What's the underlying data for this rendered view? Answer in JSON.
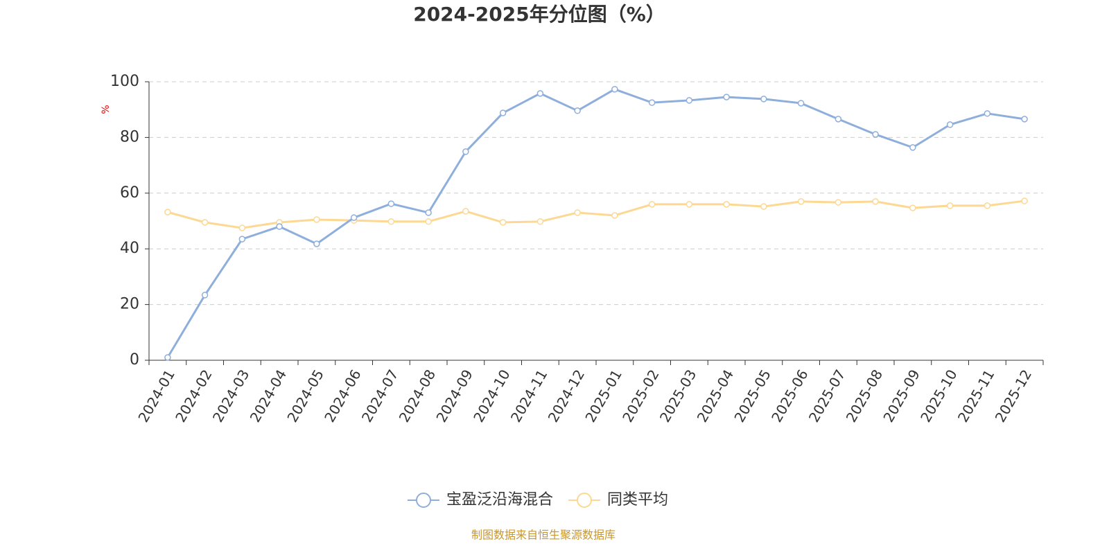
{
  "chart_data": {
    "type": "line",
    "title": "2024-2025年分位图（%）",
    "y_label": "%",
    "categories": [
      "2024-01",
      "2024-02",
      "2024-03",
      "2024-04",
      "2024-05",
      "2024-06",
      "2024-07",
      "2024-08",
      "2024-09",
      "2024-10",
      "2024-11",
      "2024-12",
      "2025-01",
      "2025-02",
      "2025-03",
      "2025-04",
      "2025-05",
      "2025-06",
      "2025-07",
      "2025-08",
      "2025-09",
      "2025-10",
      "2025-11",
      "2025-12"
    ],
    "series": [
      {
        "name": "宝盈泛沿海混合",
        "color": "#8eaedb",
        "values": [
          1,
          23.4,
          43.5,
          48,
          41.8,
          51.2,
          56.2,
          53,
          74.9,
          88.8,
          95.8,
          89.6,
          97.3,
          92.5,
          93.3,
          94.5,
          93.8,
          92.3,
          86.6,
          81.1,
          76.4,
          84.6,
          88.6,
          86.6
        ]
      },
      {
        "name": "同类平均",
        "color": "#fcd892",
        "values": [
          53.2,
          49.5,
          47.5,
          49.5,
          50.5,
          50.2,
          49.8,
          49.8,
          53.5,
          49.5,
          49.8,
          53,
          52,
          56,
          56,
          56,
          55.2,
          57,
          56.7,
          57,
          54.7,
          55.5,
          55.5,
          57.2
        ]
      }
    ],
    "ylim": [
      0,
      100
    ],
    "yticks": [
      0,
      20,
      40,
      60,
      80,
      100
    ],
    "grid": true,
    "source": "制图数据来自恒生聚源数据库"
  }
}
